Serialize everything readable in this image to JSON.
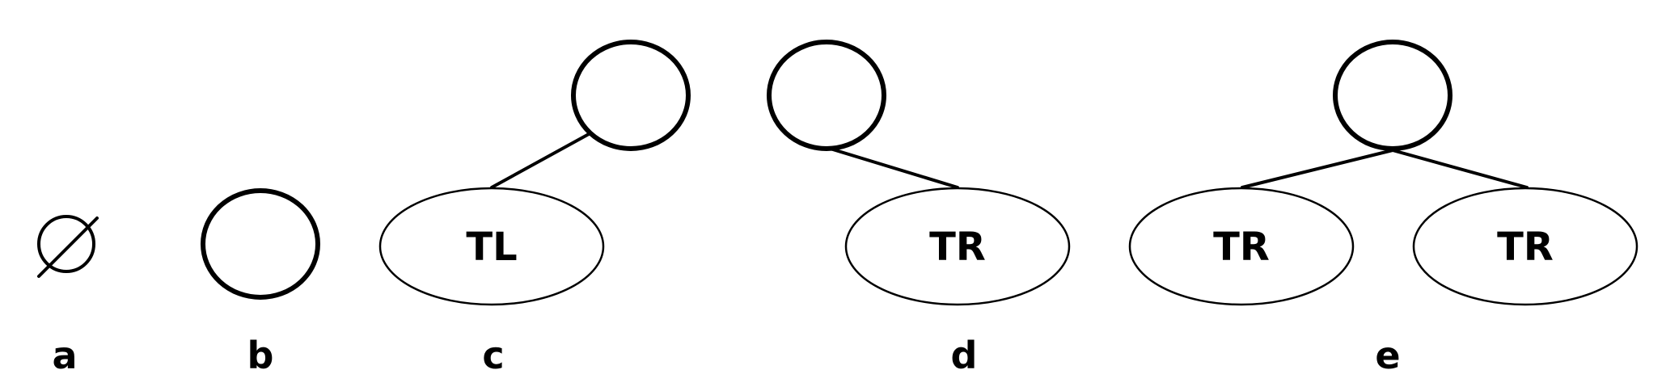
{
  "panels": [
    {
      "id": "a",
      "label": "a",
      "content": "empty"
    },
    {
      "id": "b",
      "label": "b",
      "content": "single-node"
    },
    {
      "id": "c",
      "label": "c",
      "content": "node-with-left-subtree",
      "subtree_labels": [
        "TL"
      ]
    },
    {
      "id": "d",
      "label": "d",
      "content": "node-with-right-subtree",
      "subtree_labels": [
        "TR"
      ]
    },
    {
      "id": "e",
      "label": "e",
      "content": "node-with-two-subtrees",
      "subtree_labels": [
        "TR",
        "TR"
      ]
    }
  ],
  "symbols": {
    "empty_set": "∅"
  },
  "colors": {
    "stroke": "#000000",
    "background": "#ffffff"
  }
}
